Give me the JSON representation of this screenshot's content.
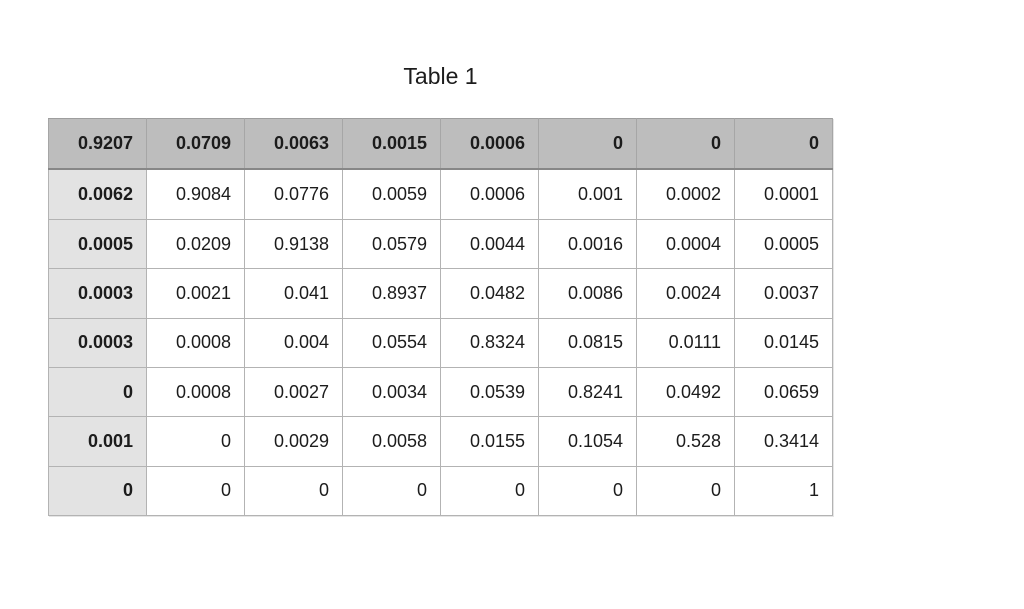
{
  "title": "Table 1",
  "chart_data": {
    "type": "table",
    "title": "Table 1",
    "header_row": [
      "0.9207",
      "0.0709",
      "0.0063",
      "0.0015",
      "0.0006",
      "0",
      "0",
      "0"
    ],
    "rows": [
      [
        "0.0062",
        "0.9084",
        "0.0776",
        "0.0059",
        "0.0006",
        "0.001",
        "0.0002",
        "0.0001"
      ],
      [
        "0.0005",
        "0.0209",
        "0.9138",
        "0.0579",
        "0.0044",
        "0.0016",
        "0.0004",
        "0.0005"
      ],
      [
        "0.0003",
        "0.0021",
        "0.041",
        "0.8937",
        "0.0482",
        "0.0086",
        "0.0024",
        "0.0037"
      ],
      [
        "0.0003",
        "0.0008",
        "0.004",
        "0.0554",
        "0.8324",
        "0.0815",
        "0.0111",
        "0.0145"
      ],
      [
        "0",
        "0.0008",
        "0.0027",
        "0.0034",
        "0.0539",
        "0.8241",
        "0.0492",
        "0.0659"
      ],
      [
        "0.001",
        "0",
        "0.0029",
        "0.0058",
        "0.0155",
        "0.1054",
        "0.528",
        "0.3414"
      ],
      [
        "0",
        "0",
        "0",
        "0",
        "0",
        "0",
        "0",
        "1"
      ]
    ]
  },
  "colors": {
    "page_bg": "#ffffff",
    "header_bg": "#bdbdbd",
    "header_border": "#878787",
    "header_sep": "#a6a6a6",
    "label_bg": "#e3e3e3",
    "grid_border": "#b3b3b3",
    "outer_border": "#9e9e9e",
    "text": "#1c1c1c"
  }
}
